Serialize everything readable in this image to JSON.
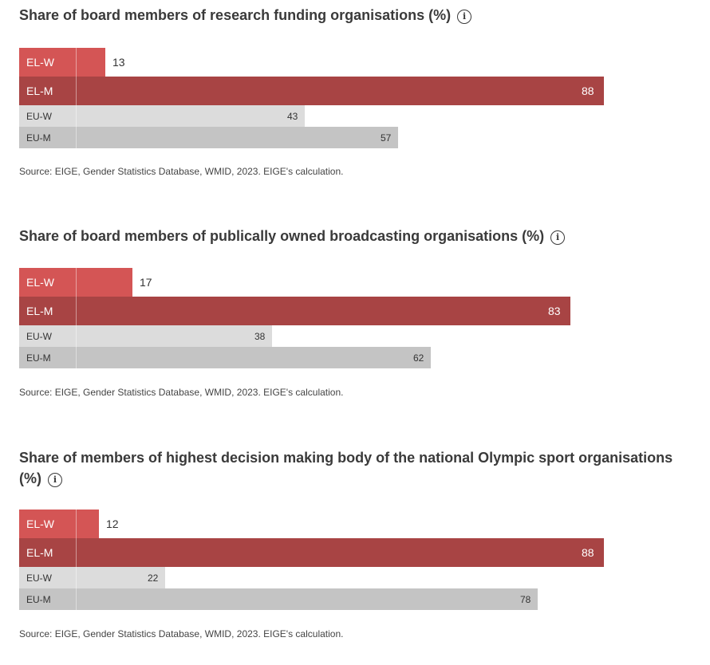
{
  "colors": {
    "el_w": "#d45555",
    "el_m": "#a84444",
    "eu_w": "#dcdcdc",
    "eu_m": "#c4c4c4"
  },
  "info_icon": "info-icon",
  "chart_data": [
    {
      "type": "bar",
      "orientation": "horizontal",
      "title": "Share of board members of research funding organisations (%)",
      "categories": [
        "EL-W",
        "EL-M",
        "EU-W",
        "EU-M"
      ],
      "values": [
        13,
        88,
        43,
        57
      ],
      "value_labels": [
        "13",
        "88",
        "43",
        "57"
      ],
      "xlim": [
        0,
        100
      ],
      "source": "Source: EIGE, Gender Statistics Database, WMID, 2023. EIGE's calculation."
    },
    {
      "type": "bar",
      "orientation": "horizontal",
      "title": "Share of board members of publically owned broadcasting organisations (%)",
      "categories": [
        "EL-W",
        "EL-M",
        "EU-W",
        "EU-M"
      ],
      "values": [
        17,
        83,
        38,
        62
      ],
      "value_labels": [
        "17",
        "83",
        "38",
        "62"
      ],
      "xlim": [
        0,
        100
      ],
      "source": "Source: EIGE, Gender Statistics Database, WMID, 2023. EIGE's calculation."
    },
    {
      "type": "bar",
      "orientation": "horizontal",
      "title": "Share of members of highest decision making body of the national Olympic sport organisations (%)",
      "categories": [
        "EL-W",
        "EL-M",
        "EU-W",
        "EU-M"
      ],
      "values": [
        12,
        88,
        22,
        78
      ],
      "value_labels": [
        "12",
        "88",
        "22",
        "78"
      ],
      "xlim": [
        0,
        100
      ],
      "source": "Source: EIGE, Gender Statistics Database, WMID, 2023. EIGE's calculation."
    }
  ]
}
